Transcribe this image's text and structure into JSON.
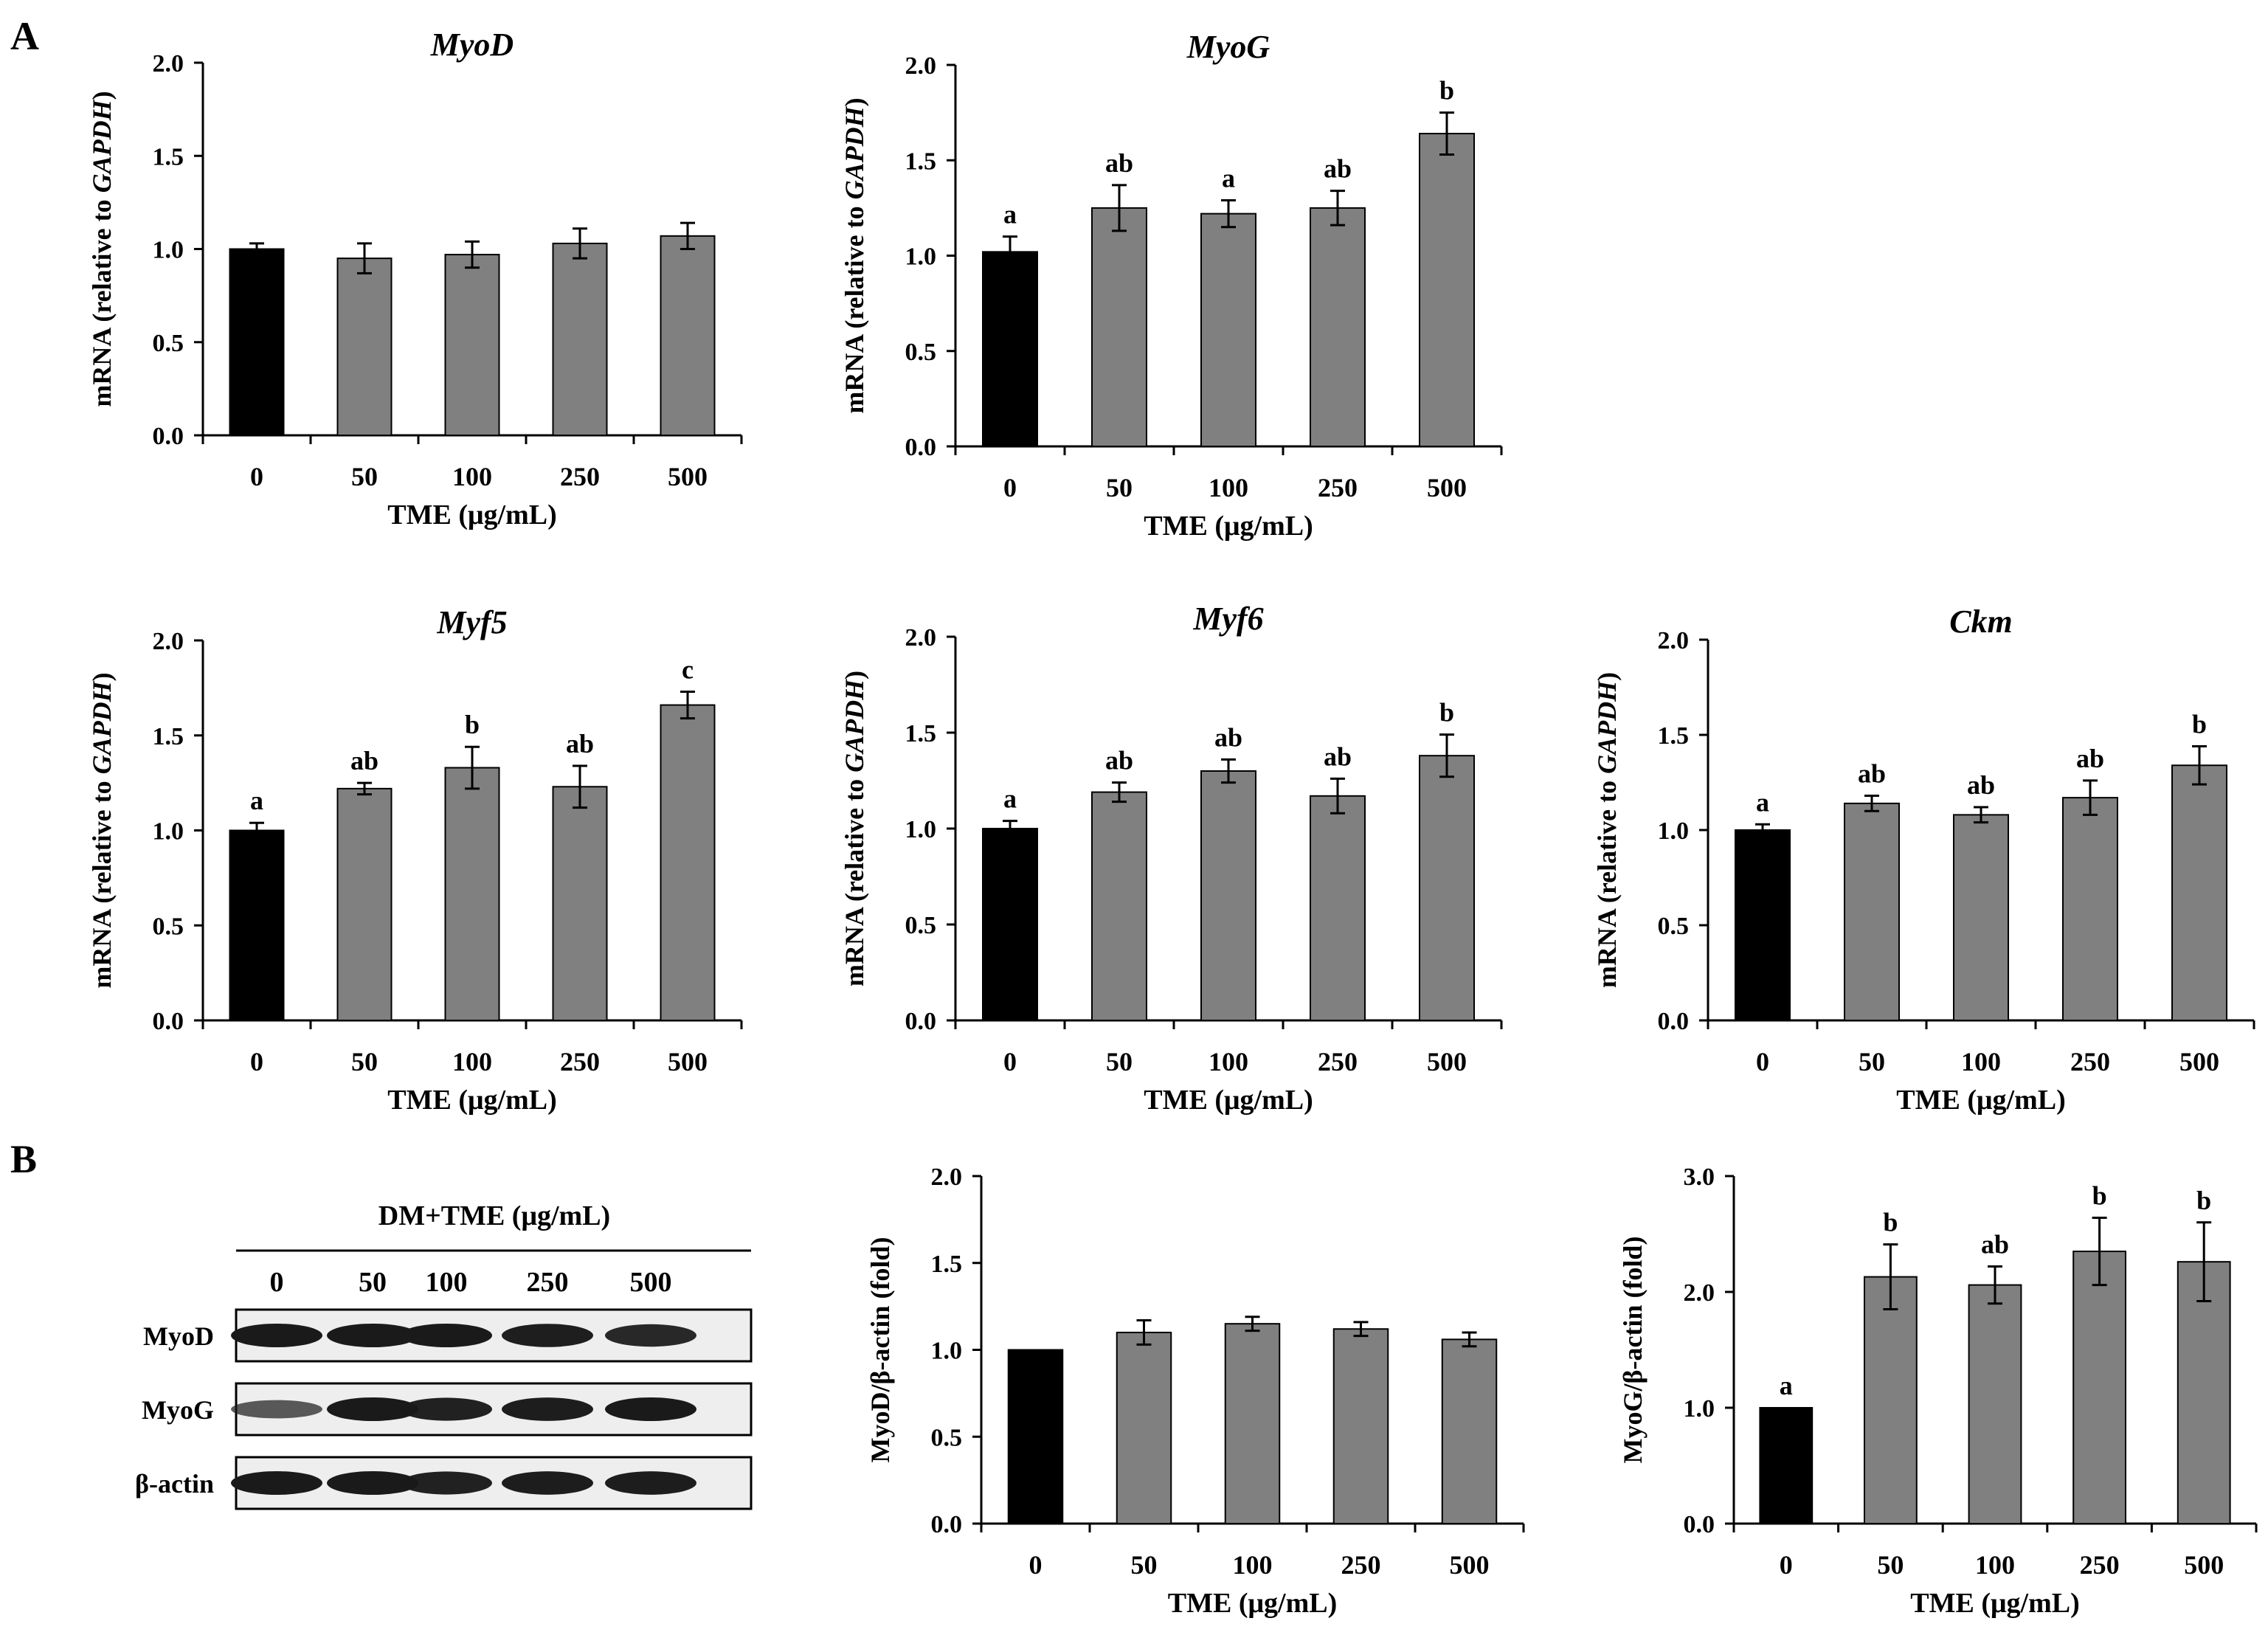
{
  "panel_labels": [
    "A",
    "B"
  ],
  "colors": {
    "control_bar": "#000000",
    "treatment_bar": "#808080",
    "axis": "#000000",
    "blot_bg": "#eeeeee",
    "band": "#1a1a1a"
  },
  "western_blot": {
    "header": "DM+TME (μg/mL)",
    "lanes": [
      "0",
      "50",
      "100",
      "250",
      "500"
    ],
    "rows": [
      {
        "label": "MyoD",
        "intensity": [
          1.0,
          1.0,
          1.0,
          0.97,
          0.9
        ]
      },
      {
        "label": "MyoG",
        "intensity": [
          0.55,
          1.0,
          0.95,
          0.98,
          1.0
        ]
      },
      {
        "label": "β-actin",
        "intensity": [
          1.0,
          1.0,
          0.95,
          0.98,
          0.98
        ]
      }
    ]
  },
  "chart_data": [
    {
      "id": "myod",
      "type": "bar",
      "title": "MyoD",
      "title_italic": true,
      "categories": [
        "0",
        "50",
        "100",
        "250",
        "500"
      ],
      "values": [
        1.0,
        0.95,
        0.97,
        1.03,
        1.07
      ],
      "errors": [
        0.03,
        0.08,
        0.07,
        0.08,
        0.07
      ],
      "sig_labels": [
        "",
        "",
        "",
        "",
        ""
      ],
      "xlabel": "TME (μg/mL)",
      "ylabel_prefix": "mRNA (relative to ",
      "ylabel_italic": "GAPDH",
      "ylabel_suffix": ")",
      "ylim": [
        0,
        2.0
      ],
      "yticks": [
        "0.0",
        "0.5",
        "1.0",
        "1.5",
        "2.0"
      ]
    },
    {
      "id": "myog",
      "type": "bar",
      "title": "MyoG",
      "title_italic": true,
      "categories": [
        "0",
        "50",
        "100",
        "250",
        "500"
      ],
      "values": [
        1.02,
        1.25,
        1.22,
        1.25,
        1.64
      ],
      "errors": [
        0.08,
        0.12,
        0.07,
        0.09,
        0.11
      ],
      "sig_labels": [
        "a",
        "ab",
        "a",
        "ab",
        "b"
      ],
      "xlabel": "TME (μg/mL)",
      "ylabel_prefix": "mRNA (relative to ",
      "ylabel_italic": "GAPDH",
      "ylabel_suffix": ")",
      "ylim": [
        0,
        2.0
      ],
      "yticks": [
        "0.0",
        "0.5",
        "1.0",
        "1.5",
        "2.0"
      ]
    },
    {
      "id": "myf5",
      "type": "bar",
      "title": "Myf5",
      "title_italic": true,
      "categories": [
        "0",
        "50",
        "100",
        "250",
        "500"
      ],
      "values": [
        1.0,
        1.22,
        1.33,
        1.23,
        1.66
      ],
      "errors": [
        0.04,
        0.03,
        0.11,
        0.11,
        0.07
      ],
      "sig_labels": [
        "a",
        "ab",
        "b",
        "ab",
        "c"
      ],
      "xlabel": "TME (μg/mL)",
      "ylabel_prefix": "mRNA (relative to ",
      "ylabel_italic": "GAPDH",
      "ylabel_suffix": ")",
      "ylim": [
        0,
        2.0
      ],
      "yticks": [
        "0.0",
        "0.5",
        "1.0",
        "1.5",
        "2.0"
      ]
    },
    {
      "id": "myf6",
      "type": "bar",
      "title": "Myf6",
      "title_italic": true,
      "categories": [
        "0",
        "50",
        "100",
        "250",
        "500"
      ],
      "values": [
        1.0,
        1.19,
        1.3,
        1.17,
        1.38
      ],
      "errors": [
        0.04,
        0.05,
        0.06,
        0.09,
        0.11
      ],
      "sig_labels": [
        "a",
        "ab",
        "ab",
        "ab",
        "b"
      ],
      "xlabel": "TME (μg/mL)",
      "ylabel_prefix": "mRNA (relative to ",
      "ylabel_italic": "GAPDH",
      "ylabel_suffix": ")",
      "ylim": [
        0,
        2.0
      ],
      "yticks": [
        "0.0",
        "0.5",
        "1.0",
        "1.5",
        "2.0"
      ]
    },
    {
      "id": "ckm",
      "type": "bar",
      "title": "Ckm",
      "title_italic": true,
      "categories": [
        "0",
        "50",
        "100",
        "250",
        "500"
      ],
      "values": [
        1.0,
        1.14,
        1.08,
        1.17,
        1.34
      ],
      "errors": [
        0.03,
        0.04,
        0.04,
        0.09,
        0.1
      ],
      "sig_labels": [
        "a",
        "ab",
        "ab",
        "ab",
        "b"
      ],
      "xlabel": "TME (μg/mL)",
      "ylabel_prefix": "mRNA (relative to ",
      "ylabel_italic": "GAPDH",
      "ylabel_suffix": ")",
      "ylim": [
        0,
        2.0
      ],
      "yticks": [
        "0.0",
        "0.5",
        "1.0",
        "1.5",
        "2.0"
      ]
    },
    {
      "id": "myod-protein",
      "type": "bar",
      "title": "",
      "title_italic": false,
      "categories": [
        "0",
        "50",
        "100",
        "250",
        "500"
      ],
      "values": [
        1.0,
        1.1,
        1.15,
        1.12,
        1.06
      ],
      "errors": [
        0.0,
        0.07,
        0.04,
        0.04,
        0.04
      ],
      "sig_labels": [
        "",
        "",
        "",
        "",
        ""
      ],
      "xlabel": "TME (μg/mL)",
      "ylabel_prefix": "MyoD/β-actin (fold)",
      "ylabel_italic": "",
      "ylabel_suffix": "",
      "ylim": [
        0,
        2.0
      ],
      "yticks": [
        "0.0",
        "0.5",
        "1.0",
        "1.5",
        "2.0"
      ]
    },
    {
      "id": "myog-protein",
      "type": "bar",
      "title": "",
      "title_italic": false,
      "categories": [
        "0",
        "50",
        "100",
        "250",
        "500"
      ],
      "values": [
        1.0,
        2.13,
        2.06,
        2.35,
        2.26
      ],
      "errors": [
        0.0,
        0.28,
        0.16,
        0.29,
        0.34
      ],
      "sig_labels": [
        "a",
        "b",
        "ab",
        "b",
        "b"
      ],
      "xlabel": "TME (μg/mL)",
      "ylabel_prefix": "MyoG/β-actin (fold)",
      "ylabel_italic": "",
      "ylabel_suffix": "",
      "ylim": [
        0,
        3.0
      ],
      "yticks": [
        "0.0",
        "1.0",
        "2.0",
        "3.0"
      ]
    }
  ]
}
